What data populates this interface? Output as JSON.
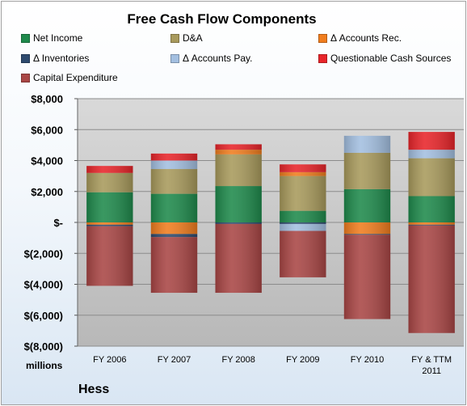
{
  "chart_data": {
    "type": "bar",
    "stacked": true,
    "title": "Free Cash Flow Components",
    "units_label": "millions",
    "company": "Hess",
    "categories": [
      "FY 2006",
      "FY 2007",
      "FY 2008",
      "FY 2009",
      "FY 2010",
      "FY & TTM 2011"
    ],
    "ylim": [
      -8000,
      8000
    ],
    "yticks": [
      8000,
      6000,
      4000,
      2000,
      0,
      -2000,
      -4000,
      -6000,
      -8000
    ],
    "ytick_labels": [
      "$8,000",
      "$6,000",
      "$4,000",
      "$2,000",
      "$-",
      "$(2,000)",
      "$(4,000)",
      "$(6,000)",
      "$(8,000)"
    ],
    "grid": true,
    "legend_position": "top",
    "series": [
      {
        "name": "Net Income",
        "color": "#1f8a4c",
        "values": [
          1950,
          1850,
          2350,
          750,
          2150,
          1700
        ]
      },
      {
        "name": "D&A",
        "color": "#a89a5c",
        "values": [
          1250,
          1600,
          2050,
          2250,
          2350,
          2450
        ]
      },
      {
        "name": "Δ Accounts Rec.",
        "color": "#f07d1e",
        "values": [
          -150,
          -750,
          300,
          250,
          -750,
          -150
        ]
      },
      {
        "name": "Δ Inventories",
        "color": "#2e4a6e",
        "values": [
          -100,
          -200,
          -100,
          -100,
          -50,
          -50
        ]
      },
      {
        "name": "Δ Accounts Pay.",
        "color": "#a3bfe0",
        "values": [
          0,
          550,
          0,
          -450,
          1100,
          550
        ]
      },
      {
        "name": "Questionable Cash Sources",
        "color": "#e8252a",
        "values": [
          450,
          450,
          350,
          500,
          0,
          1150
        ]
      },
      {
        "name": "Capital Expenditure",
        "color": "#a94645",
        "values": [
          -3850,
          -3600,
          -4450,
          -3000,
          -5450,
          -6950
        ]
      }
    ]
  }
}
